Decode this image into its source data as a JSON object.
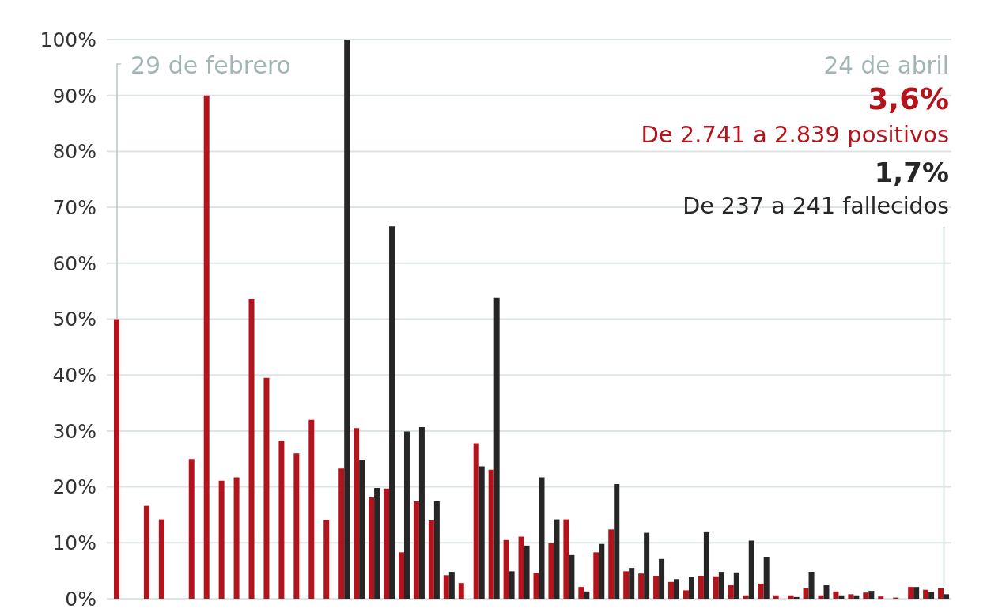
{
  "chart_data": {
    "type": "bar",
    "annotations": [
      "29 de febrero",
      "24 de abril",
      "3,6%",
      "De 2.741 a 2.839 positivos",
      "1,7%",
      "De 237 a 241 fallecidos"
    ],
    "categories": [
      null,
      null,
      null,
      null,
      null,
      null,
      null,
      null,
      null,
      null,
      null,
      null,
      null,
      null,
      null,
      null,
      null,
      null,
      null,
      null,
      null,
      null,
      null,
      null,
      null,
      null,
      null,
      null,
      null,
      null,
      null,
      null,
      null,
      null,
      null,
      null,
      null,
      null,
      null,
      null,
      null,
      null,
      null,
      null,
      null,
      null,
      null,
      null,
      null,
      null,
      null,
      null,
      null,
      null,
      null,
      null
    ],
    "series": [
      {
        "color": "#b3141c",
        "values": [
          50,
          0,
          16.6,
          14.2,
          0,
          25,
          90,
          21.1,
          21.7,
          53.6,
          39.5,
          28.3,
          26,
          32,
          14.1,
          23.3,
          30.5,
          18.1,
          19.7,
          8.3,
          17.4,
          14,
          4.2,
          2.8,
          27.8,
          23.1,
          10.5,
          11.1,
          4.6,
          9.9,
          14.2,
          2.1,
          8.3,
          12.4,
          4.9,
          4.5,
          4.1,
          3,
          1.5,
          4.1,
          4,
          2.4,
          0.6,
          2.7,
          0.6,
          0.6,
          1.9,
          0.6,
          1.3,
          0.8,
          1.1,
          0.4,
          0.2,
          2.1,
          1.6,
          1.9
        ]
      },
      {
        "color": "#262626",
        "values": [
          null,
          null,
          null,
          null,
          null,
          null,
          null,
          null,
          null,
          null,
          null,
          null,
          null,
          null,
          null,
          100,
          24.9,
          19.8,
          66.6,
          29.9,
          30.7,
          17.4,
          4.8,
          0,
          23.7,
          53.8,
          4.9,
          9.5,
          21.7,
          14.2,
          7.8,
          1.3,
          9.8,
          20.5,
          5.5,
          11.8,
          7.1,
          3.5,
          3.9,
          11.9,
          4.8,
          4.7,
          10.4,
          7.5,
          0,
          0.3,
          4.8,
          2.4,
          0.6,
          0.6,
          1.4,
          0,
          0,
          2.1,
          1.2,
          0.8
        ]
      }
    ],
    "ylim": [
      0,
      100
    ],
    "yticks": [
      {
        "value": 0,
        "label": "0%"
      },
      {
        "value": 10,
        "label": "10%"
      },
      {
        "value": 20,
        "label": "20%"
      },
      {
        "value": 30,
        "label": "30%"
      },
      {
        "value": 40,
        "label": "40%"
      },
      {
        "value": 50,
        "label": "50%"
      },
      {
        "value": 60,
        "label": "60%"
      },
      {
        "value": 70,
        "label": "70%"
      },
      {
        "value": 80,
        "label": "80%"
      },
      {
        "value": 90,
        "label": "90%"
      },
      {
        "value": 100,
        "label": "100%"
      }
    ],
    "grid": "y",
    "tick_labels": "y"
  }
}
